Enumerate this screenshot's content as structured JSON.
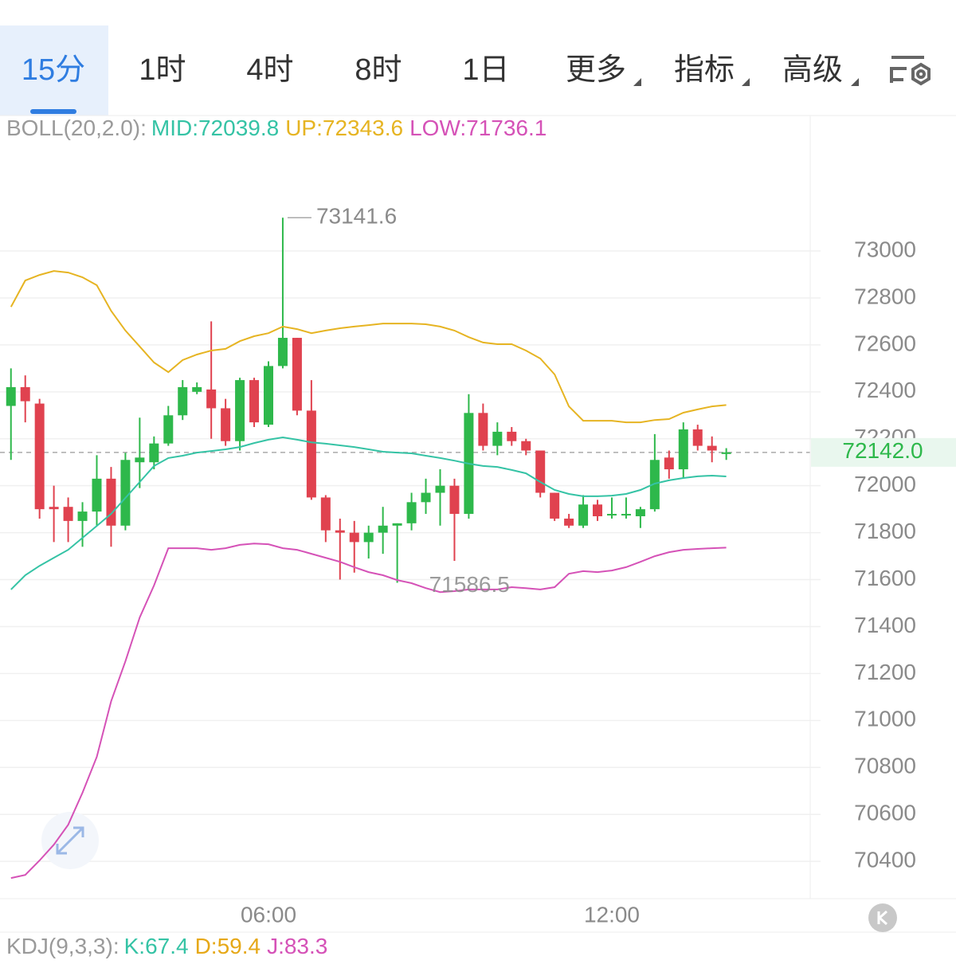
{
  "tabs": [
    "15分",
    "1时",
    "4时",
    "8时",
    "1日",
    "更多",
    "指标",
    "高级"
  ],
  "chart_data": {
    "type": "candlestick",
    "indicator": "BOLL(20,2.0):",
    "x": [
      null,
      null,
      null,
      null,
      null,
      null,
      null,
      null,
      null,
      null,
      null,
      null,
      null,
      null,
      null,
      null,
      null,
      null,
      "06:00",
      null,
      null,
      null,
      null,
      null,
      null,
      null,
      null,
      null,
      null,
      null,
      null,
      null,
      null,
      null,
      null,
      null,
      null,
      null,
      null,
      null,
      null,
      null,
      "12:00",
      null,
      null,
      null,
      null,
      null,
      null,
      null,
      null
    ],
    "open": [
      72340,
      72420,
      72350,
      71910,
      71910,
      71850,
      71890,
      72030,
      71830,
      72100,
      72100,
      72180,
      72300,
      72400,
      72410,
      72330,
      72190,
      72450,
      72260,
      72510,
      72630,
      72320,
      71950,
      71810,
      71800,
      71760,
      71800,
      71830,
      71840,
      71930,
      71970,
      72000,
      71880,
      72310,
      72170,
      72230,
      72190,
      72150,
      71970,
      71860,
      71830,
      71920,
      71880,
      71880,
      71870,
      71900,
      72120,
      72070,
      72240,
      72170,
      72138
    ],
    "high": [
      72500,
      72470,
      72370,
      72000,
      71950,
      71930,
      72130,
      72080,
      72140,
      72290,
      72210,
      72340,
      72450,
      72440,
      72700,
      72370,
      72460,
      72460,
      72530,
      73141.6,
      72630,
      72450,
      71960,
      71860,
      71850,
      71830,
      71910,
      71840,
      71970,
      72030,
      72070,
      72030,
      72390,
      72350,
      72270,
      72250,
      72200,
      72150,
      71970,
      71880,
      71960,
      71940,
      71950,
      71950,
      71910,
      72220,
      72150,
      72270,
      72260,
      72210,
      72160
    ],
    "low": [
      72110,
      72270,
      71860,
      71760,
      71760,
      71740,
      71830,
      71740,
      71810,
      71990,
      72070,
      72170,
      72280,
      72390,
      72200,
      72170,
      72150,
      72250,
      72250,
      72500,
      72300,
      71940,
      71760,
      71600,
      71630,
      71690,
      71710,
      71586.5,
      71810,
      71880,
      71830,
      71680,
      71860,
      72150,
      72130,
      72170,
      72130,
      71950,
      71850,
      71820,
      71820,
      71850,
      71860,
      71860,
      71820,
      71890,
      72030,
      72030,
      72150,
      72100,
      72110
    ],
    "close": [
      72420,
      72360,
      71900,
      71900,
      71850,
      71890,
      72030,
      71830,
      72110,
      72120,
      72180,
      72300,
      72420,
      72420,
      72330,
      72190,
      72450,
      72270,
      72510,
      72630,
      72320,
      71950,
      71810,
      71800,
      71760,
      71800,
      71830,
      71840,
      71930,
      71970,
      72000,
      71880,
      72310,
      72170,
      72230,
      72190,
      72150,
      71970,
      71860,
      71830,
      71920,
      71870,
      71880,
      71880,
      71900,
      72110,
      72070,
      72240,
      72170,
      72150,
      72142
    ],
    "up_color": "#2eb84b",
    "down_color": "#e0424f",
    "series": [
      {
        "name": "MID:72039.8",
        "color": "#35c3a5",
        "values": [
          71558,
          71619,
          71659,
          71693,
          71727,
          71778,
          71829,
          71880,
          71948,
          72016,
          72084,
          72118,
          72128,
          72141,
          72148,
          72155,
          72165,
          72182,
          72196,
          72206,
          72196,
          72185,
          72179,
          72172,
          72165,
          72155,
          72145,
          72141,
          72138,
          72128,
          72118,
          72107,
          72094,
          72084,
          72080,
          72067,
          72053,
          72016,
          71982,
          71965,
          71955,
          71955,
          71958,
          71965,
          71982,
          72009,
          72023,
          72033,
          72040,
          72043,
          72039.8
        ]
      },
      {
        "name": "UP:72343.6",
        "color": "#e6b422",
        "values": [
          72762,
          72874,
          72898,
          72915,
          72908,
          72888,
          72854,
          72745,
          72661,
          72593,
          72525,
          72484,
          72535,
          72559,
          72576,
          72583,
          72616,
          72637,
          72650,
          72678,
          72667,
          72650,
          72661,
          72671,
          72678,
          72684,
          72691,
          72691,
          72691,
          72688,
          72678,
          72661,
          72633,
          72610,
          72603,
          72603,
          72576,
          72542,
          72474,
          72338,
          72277,
          72277,
          72277,
          72270,
          72270,
          72280,
          72284,
          72311,
          72325,
          72338,
          72343.6
        ]
      },
      {
        "name": "LOW:71736.1",
        "color": "#d552b7",
        "values": [
          70329,
          70342,
          70404,
          70471,
          70556,
          70692,
          70845,
          71082,
          71252,
          71439,
          71575,
          71734,
          71734,
          71734,
          71727,
          71734,
          71748,
          71754,
          71751,
          71734,
          71727,
          71710,
          71693,
          71676,
          71653,
          71632,
          71619,
          71598,
          71585,
          71564,
          71547,
          71551,
          71558,
          71558,
          71558,
          71568,
          71564,
          71558,
          71568,
          71625,
          71636,
          71632,
          71639,
          71653,
          71676,
          71700,
          71717,
          71727,
          71731,
          71734,
          71736.1
        ]
      }
    ],
    "ylim": [
      70241,
      73577
    ],
    "yticks": [
      70400,
      70600,
      70800,
      71000,
      71200,
      71400,
      71600,
      71800,
      72000,
      72200,
      72400,
      72600,
      72800,
      73000
    ],
    "grid": true,
    "max_label": 73141.6,
    "min_label": 71586.5,
    "last_price": {
      "value": 72142,
      "label": "72142.0"
    }
  },
  "kdj": {
    "label": "KDJ(9,3,3):",
    "k": "K:67.4",
    "d": "D:59.4",
    "j": "J:83.3"
  }
}
